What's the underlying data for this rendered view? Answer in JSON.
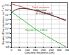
{
  "chart_data": {
    "type": "line",
    "xlabel": "Concrete thickness (cm)",
    "ylabel": "Neutron Flux (neutrons·cm⁻²·s⁻¹)",
    "log": "y",
    "grid": true,
    "xlim": [
      0,
      350
    ],
    "xticks": [
      0,
      50,
      100,
      150,
      200,
      250,
      300,
      350
    ],
    "ylim": [
      1,
      5000000000.0
    ],
    "yticks": [
      {
        "value": 1,
        "label": "10⁰"
      },
      {
        "value": 10,
        "label": "10¹"
      },
      {
        "value": 100,
        "label": "10²"
      },
      {
        "value": 1000,
        "label": "10³"
      },
      {
        "value": 10000,
        "label": "10⁴"
      },
      {
        "value": 100000,
        "label": "10⁵"
      },
      {
        "value": 1000000,
        "label": "10⁶"
      },
      {
        "value": 10000000,
        "label": "10⁷"
      },
      {
        "value": 100000000,
        "label": "10⁸"
      },
      {
        "value": 1000000000,
        "label": "10⁹"
      }
    ],
    "series": [
      {
        "name": "Total neutrons",
        "color": "#dd3333",
        "x": [
          0,
          30,
          60,
          100,
          140,
          180,
          220,
          260,
          300,
          340
        ],
        "values": [
          2500000000.0,
          1200000000.0,
          600000000.0,
          250000000.0,
          100000000.0,
          40000000.0,
          16000000.0,
          6000000.0,
          2300000.0,
          900000.0
        ]
      },
      {
        "name": "Thermal",
        "color": "#222222",
        "x": [
          0,
          20,
          40,
          60,
          80,
          100,
          120,
          150,
          180,
          220,
          260,
          300,
          340
        ],
        "values": [
          30000000.0,
          100000000.0,
          190000000.0,
          240000000.0,
          230000000.0,
          200000000.0,
          160000000.0,
          100000000.0,
          60000000.0,
          22000000.0,
          7000000.0,
          2000000.0,
          550000.0
        ]
      },
      {
        "name": "Rapide E > 1 MeV",
        "color": "#33aa33",
        "x": [
          0,
          30,
          60,
          100,
          140,
          180,
          220,
          260,
          300,
          340
        ],
        "values": [
          50000000.0,
          8000000.0,
          1500000.0,
          150000.0,
          15000.0,
          1800.0,
          250.0,
          40.0,
          7.0,
          1.2
        ]
      }
    ],
    "annotations": [
      {
        "text": "Total neutrons",
        "x": 130,
        "y": 400000000.0,
        "color": "#dd3333"
      },
      {
        "text": "Thermal",
        "x": 155,
        "y": 70000000.0,
        "color": "#222222"
      },
      {
        "text": "E > 0.41 MeV",
        "x": 155,
        "y": 32000000.0,
        "color": "#222222"
      },
      {
        "text": "Rapide E > 1 MeV",
        "x": 85,
        "y": 5000.0,
        "color": "#33aa33"
      }
    ]
  }
}
